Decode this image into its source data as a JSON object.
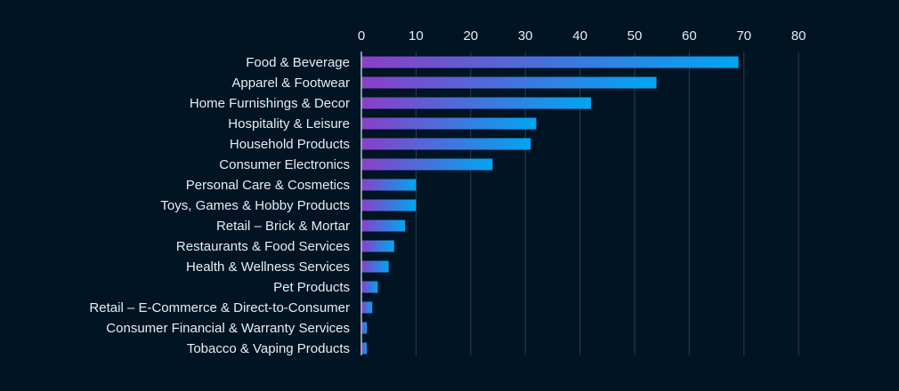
{
  "chart_data": {
    "type": "bar",
    "orientation": "horizontal",
    "title": "",
    "xlabel": "",
    "ylabel": "",
    "categories": [
      "Food & Beverage",
      "Apparel & Footwear",
      "Home Furnishings & Decor",
      "Hospitality & Leisure",
      "Household Products",
      "Consumer Electronics",
      "Personal Care & Cosmetics",
      "Toys, Games & Hobby Products",
      "Retail – Brick & Mortar",
      "Restaurants & Food Services",
      "Health & Wellness Services",
      "Pet Products",
      "Retail – E-Commerce & Direct-to-Consumer",
      "Consumer Financial & Warranty Services",
      "Tobacco & Vaping Products"
    ],
    "values": [
      69,
      54,
      42,
      32,
      31,
      24,
      10,
      10,
      8,
      6,
      5,
      3,
      2,
      1,
      1
    ],
    "xlim": [
      0,
      80
    ],
    "xticks": [
      "0",
      "10",
      "20",
      "30",
      "40",
      "50",
      "60",
      "70",
      "80"
    ],
    "x_axis_position": "top",
    "grid": true,
    "legend": "none",
    "colors": {
      "background": "#001423",
      "bar_gradient_start": "#8a3fc8",
      "bar_gradient_end": "#00a6f2",
      "text": "#e6edf3",
      "grid": "#2c3e4d"
    }
  }
}
